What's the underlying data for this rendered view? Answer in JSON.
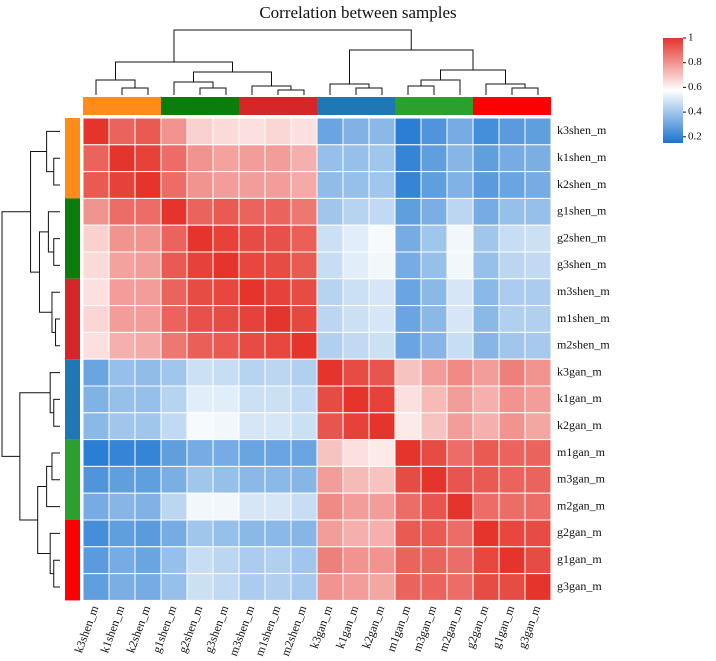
{
  "chart_data": {
    "type": "heatmap",
    "title": "Correlation between samples",
    "rows": [
      "k3shen_m",
      "k1shen_m",
      "k2shen_m",
      "g1shen_m",
      "g2shen_m",
      "g3shen_m",
      "m3shen_m",
      "m1shen_m",
      "m2shen_m",
      "k3gan_m",
      "k1gan_m",
      "k2gan_m",
      "m1gan_m",
      "m3gan_m",
      "m2gan_m",
      "g2gan_m",
      "g1gan_m",
      "g3gan_m"
    ],
    "columns": [
      "k3shen_m",
      "k1shen_m",
      "k2shen_m",
      "g1shen_m",
      "g2shen_m",
      "g3shen_m",
      "m3shen_m",
      "m1shen_m",
      "m2shen_m",
      "k3gan_m",
      "k1gan_m",
      "k2gan_m",
      "m1gan_m",
      "m3gan_m",
      "m2gan_m",
      "g2gan_m",
      "g1gan_m",
      "g3gan_m"
    ],
    "values": [
      [
        1,
        0.9,
        0.92,
        0.8,
        0.67,
        0.65,
        0.64,
        0.66,
        0.64,
        0.3,
        0.34,
        0.36,
        0.18,
        0.25,
        0.32,
        0.23,
        0.27,
        0.28
      ],
      [
        0.9,
        1,
        0.97,
        0.88,
        0.8,
        0.77,
        0.78,
        0.78,
        0.74,
        0.38,
        0.38,
        0.4,
        0.2,
        0.28,
        0.35,
        0.28,
        0.32,
        0.33
      ],
      [
        0.92,
        0.97,
        1,
        0.88,
        0.8,
        0.78,
        0.78,
        0.78,
        0.75,
        0.37,
        0.38,
        0.4,
        0.2,
        0.28,
        0.34,
        0.27,
        0.3,
        0.32
      ],
      [
        0.8,
        0.88,
        0.88,
        1,
        0.9,
        0.92,
        0.9,
        0.9,
        0.86,
        0.4,
        0.44,
        0.46,
        0.28,
        0.33,
        0.45,
        0.32,
        0.38,
        0.38
      ],
      [
        0.67,
        0.8,
        0.8,
        0.9,
        1,
        0.97,
        0.95,
        0.94,
        0.91,
        0.48,
        0.52,
        0.56,
        0.32,
        0.4,
        0.55,
        0.4,
        0.47,
        0.48
      ],
      [
        0.65,
        0.77,
        0.78,
        0.92,
        0.97,
        1,
        0.96,
        0.95,
        0.92,
        0.47,
        0.52,
        0.55,
        0.32,
        0.38,
        0.55,
        0.38,
        0.45,
        0.46
      ],
      [
        0.64,
        0.78,
        0.78,
        0.9,
        0.95,
        0.96,
        1,
        0.97,
        0.95,
        0.44,
        0.48,
        0.5,
        0.3,
        0.36,
        0.5,
        0.36,
        0.42,
        0.42
      ],
      [
        0.66,
        0.78,
        0.78,
        0.9,
        0.94,
        0.95,
        0.97,
        1,
        0.96,
        0.45,
        0.48,
        0.5,
        0.3,
        0.36,
        0.5,
        0.36,
        0.43,
        0.43
      ],
      [
        0.64,
        0.74,
        0.75,
        0.86,
        0.91,
        0.92,
        0.95,
        0.96,
        1,
        0.43,
        0.46,
        0.48,
        0.3,
        0.35,
        0.47,
        0.35,
        0.4,
        0.41
      ],
      [
        0.3,
        0.38,
        0.37,
        0.4,
        0.48,
        0.47,
        0.44,
        0.45,
        0.43,
        1,
        0.95,
        0.93,
        0.7,
        0.78,
        0.82,
        0.78,
        0.84,
        0.8
      ],
      [
        0.34,
        0.38,
        0.38,
        0.44,
        0.52,
        0.52,
        0.48,
        0.48,
        0.46,
        0.95,
        1,
        0.97,
        0.64,
        0.72,
        0.78,
        0.74,
        0.8,
        0.78
      ],
      [
        0.36,
        0.4,
        0.4,
        0.46,
        0.56,
        0.55,
        0.5,
        0.5,
        0.48,
        0.93,
        0.97,
        1,
        0.62,
        0.7,
        0.78,
        0.74,
        0.8,
        0.76
      ],
      [
        0.18,
        0.2,
        0.2,
        0.28,
        0.32,
        0.32,
        0.3,
        0.3,
        0.3,
        0.7,
        0.64,
        0.62,
        1,
        0.95,
        0.88,
        0.92,
        0.9,
        0.9
      ],
      [
        0.25,
        0.28,
        0.28,
        0.33,
        0.4,
        0.38,
        0.36,
        0.36,
        0.35,
        0.78,
        0.72,
        0.7,
        0.95,
        1,
        0.93,
        0.92,
        0.9,
        0.9
      ],
      [
        0.32,
        0.35,
        0.34,
        0.45,
        0.55,
        0.55,
        0.5,
        0.5,
        0.47,
        0.82,
        0.78,
        0.78,
        0.88,
        0.93,
        1,
        0.88,
        0.88,
        0.88
      ],
      [
        0.23,
        0.28,
        0.27,
        0.32,
        0.4,
        0.38,
        0.36,
        0.36,
        0.35,
        0.78,
        0.74,
        0.74,
        0.92,
        0.92,
        0.88,
        1,
        0.96,
        0.95
      ],
      [
        0.27,
        0.32,
        0.3,
        0.38,
        0.47,
        0.45,
        0.42,
        0.43,
        0.4,
        0.84,
        0.8,
        0.8,
        0.9,
        0.9,
        0.88,
        0.96,
        1,
        0.95
      ],
      [
        0.28,
        0.33,
        0.32,
        0.38,
        0.48,
        0.46,
        0.42,
        0.43,
        0.41,
        0.8,
        0.78,
        0.76,
        0.9,
        0.9,
        0.88,
        0.95,
        0.95,
        1
      ]
    ],
    "zlim": [
      0.15,
      1
    ],
    "zticks": [
      0.2,
      0.4,
      0.6,
      0.8,
      1
    ],
    "colors": [
      "#1a74d0",
      "#ffffff",
      "#e4342b"
    ]
  }
}
